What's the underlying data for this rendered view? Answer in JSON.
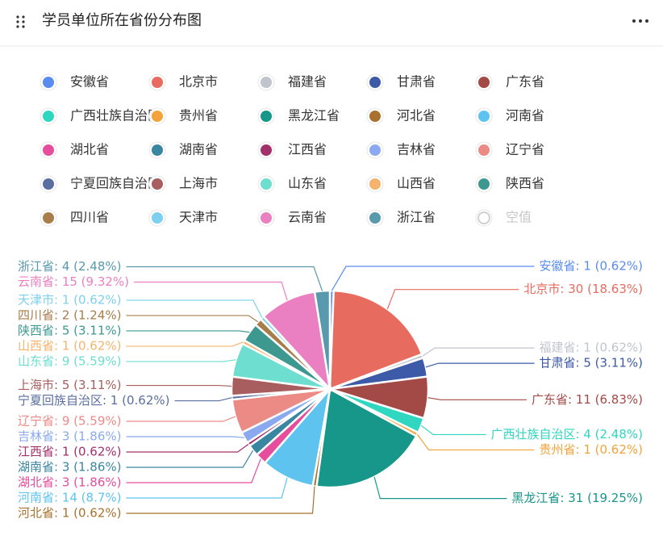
{
  "chart_data": {
    "type": "pie",
    "title": "学员单位所在省份分布图",
    "categories": [
      "安徽省",
      "北京市",
      "福建省",
      "甘肃省",
      "广东省",
      "广西壮族自治区",
      "贵州省",
      "黑龙江省",
      "河北省",
      "河南省",
      "湖北省",
      "湖南省",
      "江西省",
      "吉林省",
      "辽宁省",
      "宁夏回族自治区",
      "上海市",
      "山东省",
      "山西省",
      "陕西省",
      "四川省",
      "天津市",
      "云南省",
      "浙江省",
      "空值"
    ],
    "values": [
      1,
      30,
      1,
      5,
      11,
      4,
      1,
      31,
      1,
      14,
      3,
      3,
      1,
      3,
      9,
      1,
      5,
      9,
      1,
      5,
      2,
      1,
      15,
      4,
      null
    ],
    "value_labels": [
      "安徽省: 1 (0.62%)",
      "北京市: 30 (18.63%)",
      "福建省: 1 (0.62%)",
      "甘肃省: 5 (3.11%)",
      "广东省: 11 (6.83%)",
      "广西壮族自治区: 4 (2.48%)",
      "贵州省: 1 (0.62%)",
      "黑龙江省: 31 (19.25%)",
      "河北省: 1 (0.62%)",
      "河南省: 14 (8.7%)",
      "湖北省: 3 (1.86%)",
      "湖南省: 3 (1.86%)",
      "江西省: 1 (0.62%)",
      "吉林省: 3 (1.86%)",
      "辽宁省: 9 (5.59%)",
      "宁夏回族自治区: 1 (0.62%)",
      "上海市: 5 (3.11%)",
      "山东省: 9 (5.59%)",
      "山西省: 1 (0.62%)",
      "陕西省: 5 (3.11%)",
      "四川省: 2 (1.24%)",
      "天津市: 1 (0.62%)",
      "云南省: 15 (9.32%)",
      "浙江省: 4 (2.48%)",
      null
    ],
    "colors": [
      "#5a8cf0",
      "#e86b5f",
      "#c0c4cc",
      "#3d5aa8",
      "#a34a47",
      "#2fd6c0",
      "#f2a33a",
      "#17978a",
      "#a8722e",
      "#5ec4ef",
      "#e64d9c",
      "#3a86a0",
      "#a3306b",
      "#8aa9f0",
      "#ec8a86",
      "#5a6fa0",
      "#a85e5e",
      "#6ddecf",
      "#f5b36e",
      "#3d9990",
      "#a87d4a",
      "#7dd0ee",
      "#ea7fc2",
      "#5899ad",
      "#d0d0d0"
    ]
  }
}
